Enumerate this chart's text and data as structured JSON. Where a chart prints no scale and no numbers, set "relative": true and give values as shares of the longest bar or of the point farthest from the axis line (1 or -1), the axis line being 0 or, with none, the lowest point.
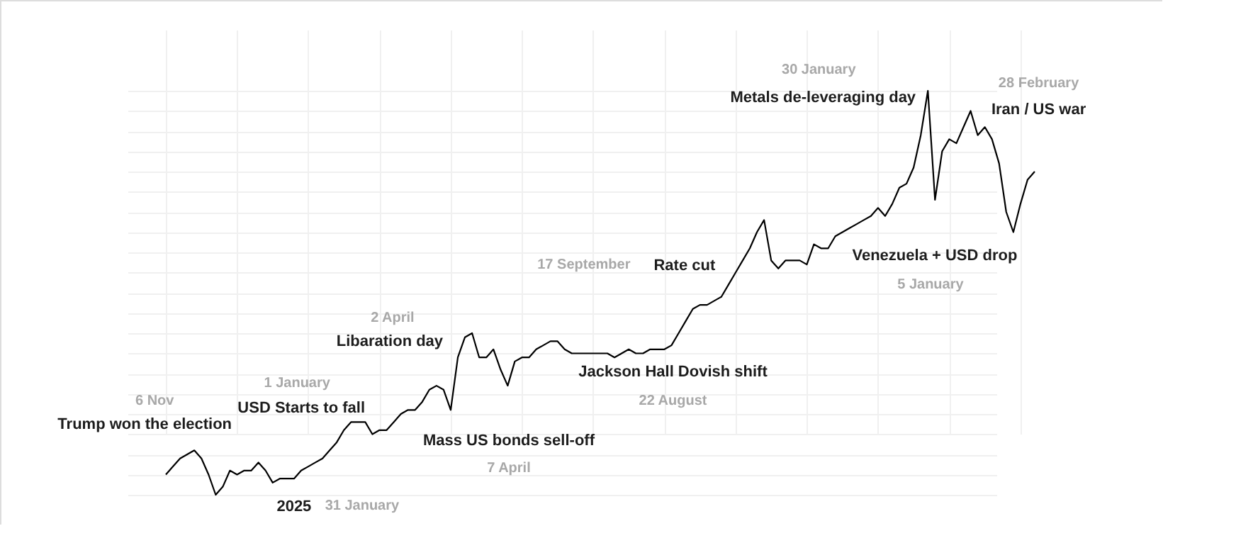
{
  "chart_data": {
    "type": "line",
    "relative": true,
    "grid": true,
    "marker": "none",
    "line_style": "solid",
    "categories": [
      null,
      null,
      null,
      null,
      null,
      null,
      null,
      null,
      null,
      null,
      null,
      null,
      null,
      null,
      null,
      null,
      null,
      null,
      null,
      null,
      null,
      null,
      null,
      null,
      null,
      null,
      null,
      null,
      null,
      null,
      null,
      null,
      null,
      null,
      null,
      null,
      null,
      null,
      null,
      null,
      null,
      null,
      null,
      null,
      null,
      null,
      null,
      null,
      null,
      null,
      null,
      null,
      null,
      null,
      null,
      null,
      null,
      null,
      null,
      null,
      null,
      null,
      null,
      null,
      null,
      null,
      null,
      null,
      null,
      null,
      null,
      null,
      null,
      null,
      null,
      null,
      null,
      null,
      null,
      null,
      null,
      null,
      null,
      null,
      null,
      null,
      null,
      null,
      null,
      null,
      null,
      null,
      null,
      null,
      null,
      null,
      null,
      null,
      null,
      null,
      null,
      null,
      null,
      null,
      null,
      null,
      null,
      null,
      null,
      null,
      null,
      null,
      null,
      null,
      null,
      null,
      null,
      null,
      null,
      null,
      null,
      null,
      null
    ],
    "series": [
      {
        "color": "#000000",
        "values": [
          0.05,
          0.07,
          0.09,
          0.1,
          0.11,
          0.09,
          0.05,
          0,
          0.02,
          0.06,
          0.05,
          0.06,
          0.06,
          0.08,
          0.06,
          0.03,
          0.04,
          0.04,
          0.04,
          0.06,
          0.07,
          0.08,
          0.09,
          0.11,
          0.13,
          0.16,
          0.18,
          0.18,
          0.18,
          0.15,
          0.16,
          0.16,
          0.18,
          0.2,
          0.21,
          0.21,
          0.23,
          0.26,
          0.27,
          0.26,
          0.21,
          0.34,
          0.39,
          0.4,
          0.34,
          0.34,
          0.36,
          0.31,
          0.27,
          0.33,
          0.34,
          0.34,
          0.36,
          0.37,
          0.38,
          0.38,
          0.36,
          0.35,
          0.35,
          0.35,
          0.35,
          0.35,
          0.35,
          0.34,
          0.35,
          0.36,
          0.35,
          0.35,
          0.36,
          0.36,
          0.36,
          0.37,
          0.4,
          0.43,
          0.46,
          0.47,
          0.47,
          0.48,
          0.49,
          0.52,
          0.55,
          0.58,
          0.61,
          0.65,
          0.68,
          0.58,
          0.56,
          0.58,
          0.58,
          0.58,
          0.57,
          0.62,
          0.61,
          0.61,
          0.64,
          0.65,
          0.66,
          0.67,
          0.68,
          0.69,
          0.71,
          0.69,
          0.72,
          0.76,
          0.77,
          0.81,
          0.89,
          1,
          0.73,
          0.85,
          0.88,
          0.87,
          0.91,
          0.95,
          0.89,
          0.91,
          0.88,
          0.82,
          0.7,
          0.65,
          0.72,
          0.78,
          0.8
        ]
      }
    ],
    "annotations": [
      "Trump won the election",
      "6 Nov",
      "2025",
      "31 January",
      "USD Starts to fall",
      "1 January",
      "Libaration day",
      "2 April",
      "Mass US bonds sell-off",
      "7 April",
      "Jackson Hall Dovish shift",
      "22 August",
      "Rate cut",
      "17 September",
      "Metals de-leveraging day",
      "30 January",
      "Venezuela + USD drop",
      "5 January",
      "Iran / US war",
      "28 February"
    ]
  }
}
